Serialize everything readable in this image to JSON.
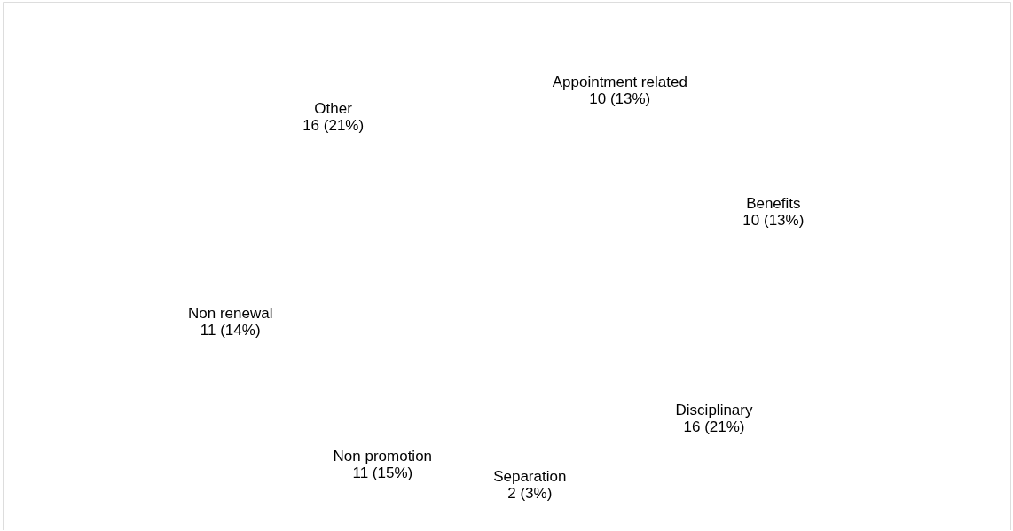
{
  "chart_data": {
    "type": "other",
    "categories": [
      "Appointment related",
      "Benefits",
      "Disciplinary",
      "Separation",
      "Non promotion",
      "Non renewal",
      "Other"
    ],
    "values": [
      10,
      10,
      16,
      2,
      11,
      11,
      16
    ],
    "value_labels": [
      "10 (13%)",
      "10 (13%)",
      "16 (21%)",
      "2 (3%)",
      "11 (15%)",
      "11 (14%)",
      "16 (21%)"
    ]
  }
}
